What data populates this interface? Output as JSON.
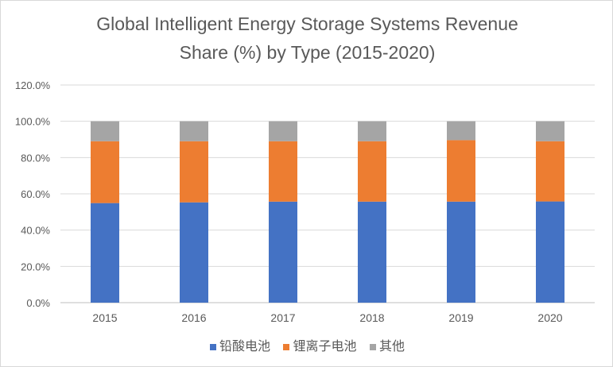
{
  "chart_data": {
    "type": "bar",
    "stacked": true,
    "title": "Global Intelligent Energy Storage Systems Revenue Share (%) by Type (2015-2020)",
    "title_lines": [
      "Global Intelligent Energy Storage Systems Revenue",
      "Share (%) by Type (2015-2020)"
    ],
    "categories": [
      "2015",
      "2016",
      "2017",
      "2018",
      "2019",
      "2020"
    ],
    "series": [
      {
        "name": "铅酸电池",
        "color": "#4472c4",
        "values": [
          54.9,
          55.3,
          55.7,
          55.7,
          55.7,
          55.8
        ]
      },
      {
        "name": "锂离子电池",
        "color": "#ed7d31",
        "values": [
          34.1,
          33.7,
          33.3,
          33.3,
          33.9,
          33.2
        ]
      },
      {
        "name": "其他",
        "color": "#a5a5a5",
        "values": [
          11.0,
          11.0,
          11.0,
          11.0,
          10.4,
          11.0
        ]
      }
    ],
    "ylim": [
      0,
      120
    ],
    "yticks": [
      "0.0%",
      "20.0%",
      "40.0%",
      "60.0%",
      "80.0%",
      "100.0%",
      "120.0%"
    ],
    "grid": true,
    "legend": "bottom",
    "xlabel": "",
    "ylabel": ""
  }
}
